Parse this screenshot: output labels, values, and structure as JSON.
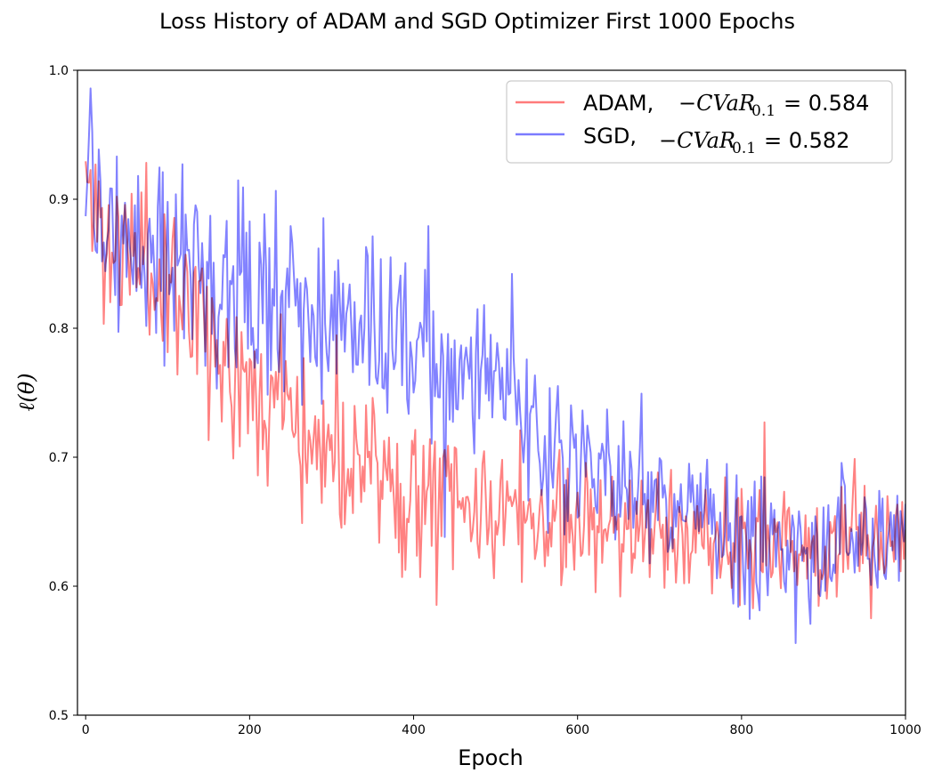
{
  "chart_data": {
    "type": "line",
    "title": "Loss History of ADAM and SGD Optimizer First 1000 Epochs",
    "xlabel": "Epoch",
    "ylabel": "ℓ(θ)",
    "xlim": [
      -10,
      1000
    ],
    "ylim": [
      0.5,
      1.0
    ],
    "xticks": [
      0,
      200,
      400,
      600,
      800,
      1000
    ],
    "yticks": [
      0.5,
      0.6,
      0.7,
      0.8,
      0.9,
      1.0
    ],
    "xtick_labels": [
      "0",
      "200",
      "400",
      "600",
      "800",
      "1000"
    ],
    "ytick_labels": [
      "0.5",
      "0.6",
      "0.7",
      "0.8",
      "0.9",
      "1.0"
    ],
    "legend_placement": "top-right",
    "grid": false,
    "series": [
      {
        "name": "ADAM",
        "legend_label": "ADAM,",
        "cvar_label": "−CVaR",
        "cvar_subscript": "0.1",
        "cvar_value": "= 0.584",
        "color": "#ff7b7b",
        "x_step": 25,
        "anchors": [
          0.92,
          0.86,
          0.86,
          0.85,
          0.84,
          0.83,
          0.79,
          0.77,
          0.76,
          0.75,
          0.74,
          0.72,
          0.7,
          0.69,
          0.685,
          0.675,
          0.67,
          0.665,
          0.66,
          0.66,
          0.655,
          0.655,
          0.65,
          0.655,
          0.65,
          0.65,
          0.645,
          0.645,
          0.64,
          0.635,
          0.635,
          0.635,
          0.635,
          0.63,
          0.635,
          0.63,
          0.63,
          0.63,
          0.635,
          0.64,
          0.645
        ],
        "noise_amplitude": 0.07,
        "seed": 11
      },
      {
        "name": "SGD",
        "legend_label": "SGD,",
        "cvar_label": "−CVaR",
        "cvar_subscript": "0.1",
        "cvar_value": "= 0.582",
        "color": "#7b7bff",
        "x_step": 25,
        "anchors": [
          0.95,
          0.88,
          0.86,
          0.85,
          0.85,
          0.845,
          0.84,
          0.83,
          0.83,
          0.82,
          0.82,
          0.81,
          0.8,
          0.795,
          0.79,
          0.78,
          0.775,
          0.77,
          0.765,
          0.76,
          0.75,
          0.735,
          0.72,
          0.71,
          0.7,
          0.69,
          0.68,
          0.675,
          0.665,
          0.655,
          0.65,
          0.645,
          0.64,
          0.635,
          0.63,
          0.63,
          0.625,
          0.625,
          0.625,
          0.63,
          0.645
        ],
        "noise_amplitude": 0.085,
        "seed": 29
      }
    ]
  }
}
